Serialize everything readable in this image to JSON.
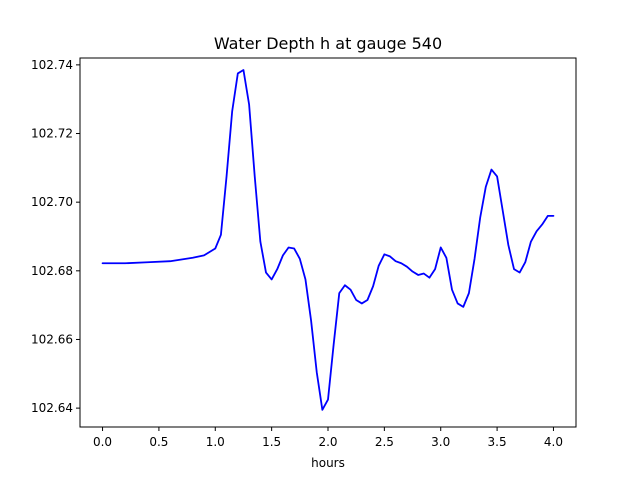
{
  "chart_data": {
    "type": "line",
    "title": "Water Depth h at gauge 540",
    "xlabel": "hours",
    "ylabel": "",
    "xlim": [
      -0.2,
      4.2
    ],
    "ylim": [
      102.6345,
      102.742
    ],
    "xticks": [
      0.0,
      0.5,
      1.0,
      1.5,
      2.0,
      2.5,
      3.0,
      3.5,
      4.0
    ],
    "xtick_labels": [
      "0.0",
      "0.5",
      "1.0",
      "1.5",
      "2.0",
      "2.5",
      "3.0",
      "3.5",
      "4.0"
    ],
    "yticks": [
      102.64,
      102.66,
      102.68,
      102.7,
      102.72,
      102.74
    ],
    "ytick_labels": [
      "102.64",
      "102.66",
      "102.68",
      "102.70",
      "102.72",
      "102.74"
    ],
    "grid": false,
    "legend": "none",
    "series": [
      {
        "color": "#0000ff",
        "x": [
          0.0,
          0.2,
          0.4,
          0.6,
          0.8,
          0.9,
          1.0,
          1.05,
          1.1,
          1.15,
          1.2,
          1.25,
          1.3,
          1.35,
          1.4,
          1.45,
          1.5,
          1.55,
          1.6,
          1.65,
          1.7,
          1.75,
          1.8,
          1.85,
          1.9,
          1.95,
          2.0,
          2.05,
          2.1,
          2.15,
          2.2,
          2.25,
          2.3,
          2.35,
          2.4,
          2.45,
          2.5,
          2.55,
          2.6,
          2.65,
          2.7,
          2.75,
          2.8,
          2.85,
          2.9,
          2.95,
          3.0,
          3.05,
          3.1,
          3.15,
          3.2,
          3.25,
          3.3,
          3.35,
          3.4,
          3.45,
          3.5,
          3.55,
          3.6,
          3.65,
          3.7,
          3.75,
          3.8,
          3.85,
          3.9,
          3.95,
          4.0
        ],
        "y": [
          102.6822,
          102.6822,
          102.6825,
          102.6828,
          102.6838,
          102.6845,
          102.6865,
          102.6905,
          102.7075,
          102.7265,
          102.7375,
          102.7385,
          102.7285,
          102.7075,
          102.6885,
          102.6795,
          102.6775,
          102.6805,
          102.6845,
          102.6868,
          102.6865,
          102.6835,
          102.6775,
          102.6655,
          102.6505,
          102.6395,
          102.6425,
          102.6585,
          102.6735,
          102.6758,
          102.6745,
          102.6715,
          102.6705,
          102.6715,
          102.6755,
          102.6815,
          102.6848,
          102.6842,
          102.6828,
          102.6822,
          102.6812,
          102.6798,
          102.6788,
          102.6792,
          102.678,
          102.6805,
          102.6868,
          102.6838,
          102.6745,
          102.6705,
          102.6695,
          102.6735,
          102.6835,
          102.6955,
          102.7045,
          102.7095,
          102.7075,
          102.6975,
          102.6875,
          102.6805,
          102.6795,
          102.6825,
          102.6885,
          102.6915,
          102.6935,
          102.696,
          102.696
        ]
      }
    ]
  }
}
